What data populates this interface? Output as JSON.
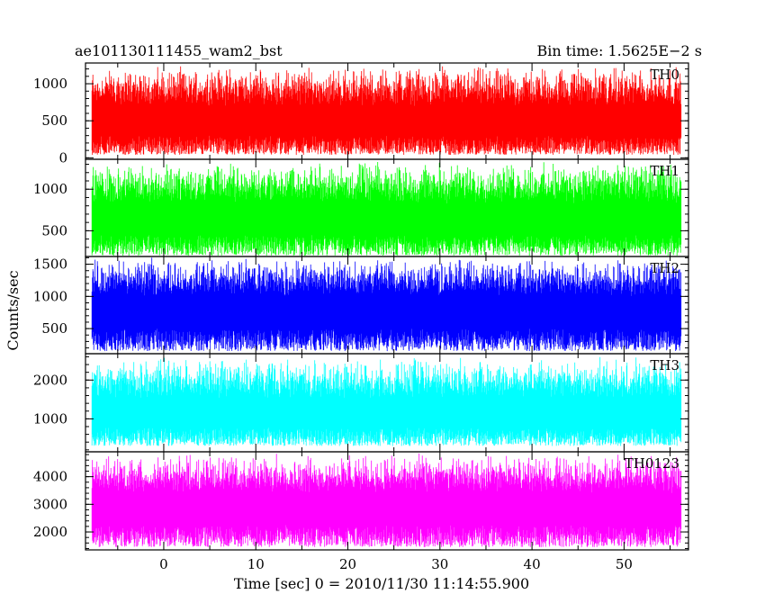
{
  "header": {
    "left": "ae101130111455_wam2_bst",
    "right": "Bin time: 1.5625E−2 s"
  },
  "ylabel": "Counts/sec",
  "xlabel": "Time [sec] 0 = 2010/11/30 11:14:55.900",
  "chart_data": {
    "type": "line",
    "shared_x": {
      "label": "Time [sec] 0 = 2010/11/30 11:14:55.900",
      "range": [
        -8.5,
        57
      ],
      "data_range": [
        -7.8,
        56.2
      ],
      "ticks": [
        0,
        10,
        20,
        30,
        40,
        50
      ],
      "bin_time_s": 0.015625
    },
    "ylabel": "Counts/sec",
    "panels": [
      {
        "name": "TH0",
        "color": "#ff0000",
        "ylim": [
          -20,
          1280
        ],
        "ticks": [
          0,
          500,
          1000
        ],
        "noise": {
          "min": 40,
          "mean": 560,
          "max": 1250
        }
      },
      {
        "name": "TH1",
        "color": "#00ff00",
        "ylim": [
          190,
          1360
        ],
        "ticks": [
          500,
          1000
        ],
        "noise": {
          "min": 200,
          "mean": 700,
          "max": 1340
        }
      },
      {
        "name": "TH2",
        "color": "#0000ff",
        "ylim": [
          110,
          1620
        ],
        "ticks": [
          500,
          1000,
          1500
        ],
        "noise": {
          "min": 150,
          "mean": 850,
          "max": 1610
        }
      },
      {
        "name": "TH3",
        "color": "#00ffff",
        "ylim": [
          150,
          2680
        ],
        "ticks": [
          1000,
          2000
        ],
        "noise": {
          "min": 300,
          "mean": 1250,
          "max": 2600
        }
      },
      {
        "name": "TH0123",
        "color": "#ff00ff",
        "ylim": [
          1350,
          4900
        ],
        "ticks": [
          2000,
          3000,
          4000
        ],
        "noise": {
          "min": 1450,
          "mean": 3050,
          "max": 4850
        }
      }
    ]
  }
}
